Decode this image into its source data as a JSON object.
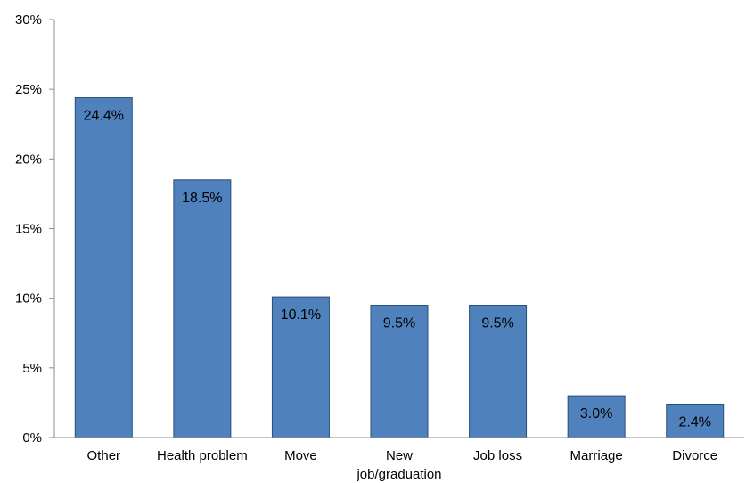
{
  "chart_data": {
    "type": "bar",
    "categories": [
      "Other",
      "Health problem",
      "Move",
      "New job/graduation",
      "Job loss",
      "Marriage",
      "Divorce"
    ],
    "category_label_lines": [
      [
        "Other"
      ],
      [
        "Health problem"
      ],
      [
        "Move"
      ],
      [
        "New",
        "job/graduation"
      ],
      [
        "Job loss"
      ],
      [
        "Marriage"
      ],
      [
        "Divorce"
      ]
    ],
    "values": [
      24.4,
      18.5,
      10.1,
      9.5,
      9.5,
      3.0,
      2.4
    ],
    "data_labels": [
      "24.4%",
      "18.5%",
      "10.1%",
      "9.5%",
      "9.5%",
      "3.0%",
      "2.4%"
    ],
    "ylim": [
      0,
      30
    ],
    "yticks": [
      0,
      5,
      10,
      15,
      20,
      25,
      30
    ],
    "ytick_labels": [
      "0%",
      "5%",
      "10%",
      "15%",
      "20%",
      "25%",
      "30%"
    ],
    "grid": false,
    "legend": "none",
    "colors": {
      "bar": "#4f81bd",
      "bar_edge": "#2a4f7a",
      "axis": "#8c8c8c"
    }
  }
}
